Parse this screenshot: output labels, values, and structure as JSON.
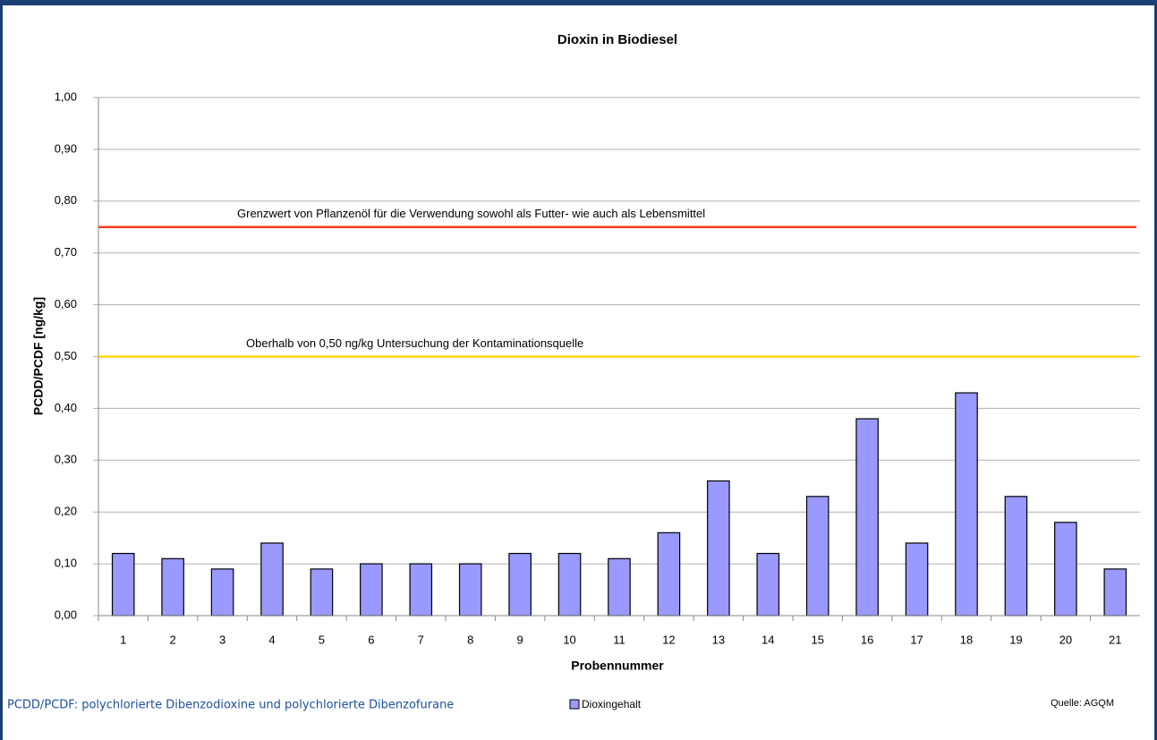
{
  "chart_data": {
    "type": "bar",
    "title": "Dioxin in Biodiesel",
    "x_label": "Probennummer",
    "y_label": "PCDD/PCDF [ng/kg]",
    "categories": [
      "1",
      "2",
      "3",
      "4",
      "5",
      "6",
      "7",
      "8",
      "9",
      "10",
      "11",
      "12",
      "13",
      "14",
      "15",
      "16",
      "17",
      "18",
      "19",
      "20",
      "21"
    ],
    "series": [
      {
        "name": "Dioxingehalt",
        "color": "#9999ff",
        "values": [
          0.12,
          0.11,
          0.09,
          0.14,
          0.09,
          0.1,
          0.1,
          0.1,
          0.12,
          0.12,
          0.11,
          0.16,
          0.26,
          0.12,
          0.23,
          0.38,
          0.14,
          0.43,
          0.23,
          0.18,
          0.09
        ]
      }
    ],
    "ylim": [
      0,
      1
    ],
    "yticks": [
      {
        "value": 0,
        "label": "0,00"
      },
      {
        "value": 0.1,
        "label": "0,10"
      },
      {
        "value": 0.2,
        "label": "0,20"
      },
      {
        "value": 0.3,
        "label": "0,30"
      },
      {
        "value": 0.4,
        "label": "0,40"
      },
      {
        "value": 0.5,
        "label": "0,50"
      },
      {
        "value": 0.6,
        "label": "0,60"
      },
      {
        "value": 0.7,
        "label": "0,70"
      },
      {
        "value": 0.8,
        "label": "0,80"
      },
      {
        "value": 0.9,
        "label": "0,90"
      },
      {
        "value": 1,
        "label": "1,00"
      }
    ],
    "grid": true,
    "reference_lines": [
      {
        "value": 0.75,
        "color": "#ff3b1f",
        "label": "Grenzwert von Pflanzenöl für die Verwendung sowohl als Futter- wie auch als Lebensmittel"
      },
      {
        "value": 0.5,
        "color": "#ffd700",
        "label": "Oberhalb von 0,50 ng/kg Untersuchung der Kontaminationsquelle"
      }
    ],
    "footnote": "PCDD/PCDF: polychlorierte Dibenzodioxine und polychlorierte Dibenzofurane",
    "source": "Quelle: AGQM"
  }
}
